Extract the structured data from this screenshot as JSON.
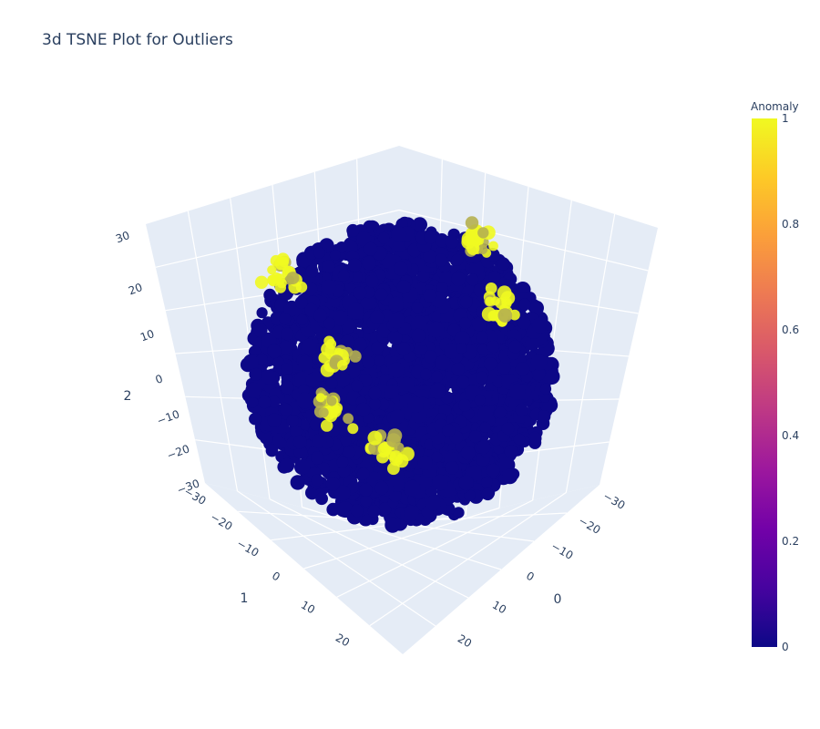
{
  "chart_data": {
    "type": "scatter",
    "title": "3d TSNE Plot for Outliers",
    "axes": {
      "x": {
        "label": "0",
        "range": [
          -30,
          30
        ],
        "ticks": [
          "−30",
          "−20",
          "−10",
          "0",
          "10",
          "20"
        ]
      },
      "y": {
        "label": "1",
        "range": [
          -30,
          30
        ],
        "ticks": [
          "−30",
          "−20",
          "−10",
          "0",
          "10",
          "20"
        ]
      },
      "z": {
        "label": "2",
        "range": [
          -30,
          30
        ],
        "ticks": [
          "30",
          "20",
          "10",
          "0",
          "−10",
          "−20",
          "−30"
        ]
      }
    },
    "grid": true,
    "colorbar": {
      "title": "Anomaly",
      "range": [
        0,
        1
      ],
      "ticks": [
        "1",
        "0.8",
        "0.6",
        "0.4",
        "0.2",
        "0"
      ],
      "colorscale": [
        "#0d0887",
        "#46039f",
        "#7201a8",
        "#9c179e",
        "#bd3786",
        "#d8576b",
        "#ed7953",
        "#fb9f3a",
        "#fdca26",
        "#f0f921"
      ]
    },
    "series": [
      {
        "value": 0,
        "color": "#0d0887",
        "shape": "dense sphere of points, radius approx 27"
      },
      {
        "value": 1,
        "color": "#f0f921",
        "clusters": [
          {
            "x": -14,
            "y": 12,
            "z": 18
          },
          {
            "x": 14,
            "y": -6,
            "z": 14
          },
          {
            "x": -6,
            "y": 10,
            "z": 4
          },
          {
            "x": -10,
            "y": 4,
            "z": -8
          },
          {
            "x": 2,
            "y": 8,
            "z": -12
          },
          {
            "x": 8,
            "y": -10,
            "z": 24
          }
        ]
      }
    ]
  }
}
